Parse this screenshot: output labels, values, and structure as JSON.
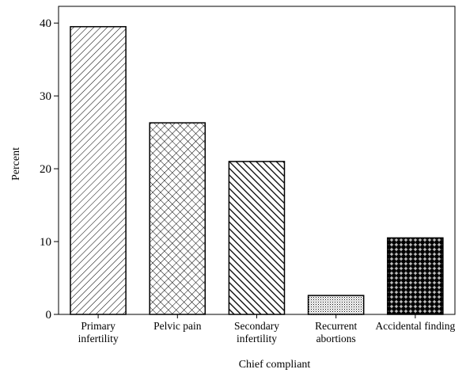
{
  "chart_data": {
    "type": "bar",
    "categories": [
      [
        "Primary",
        "infertility"
      ],
      [
        "Pelvic pain"
      ],
      [
        "Secondary",
        "infertility"
      ],
      [
        "Recurrent",
        "abortions"
      ],
      [
        "Accidental finding"
      ]
    ],
    "values": [
      39.5,
      26.3,
      21.0,
      2.6,
      10.5
    ],
    "patterns": [
      "diagonal-fine",
      "crosshatch",
      "diagonal-bold",
      "dots",
      "plus-grid"
    ],
    "xlabel": "Chief compliant",
    "ylabel": "Percent",
    "ylim": [
      0,
      42.3
    ],
    "yticks": [
      0,
      10,
      20,
      30,
      40
    ],
    "grid": false,
    "colors": {
      "bar_stroke": "#000000",
      "axis": "#000000",
      "background": "#ffffff"
    }
  }
}
